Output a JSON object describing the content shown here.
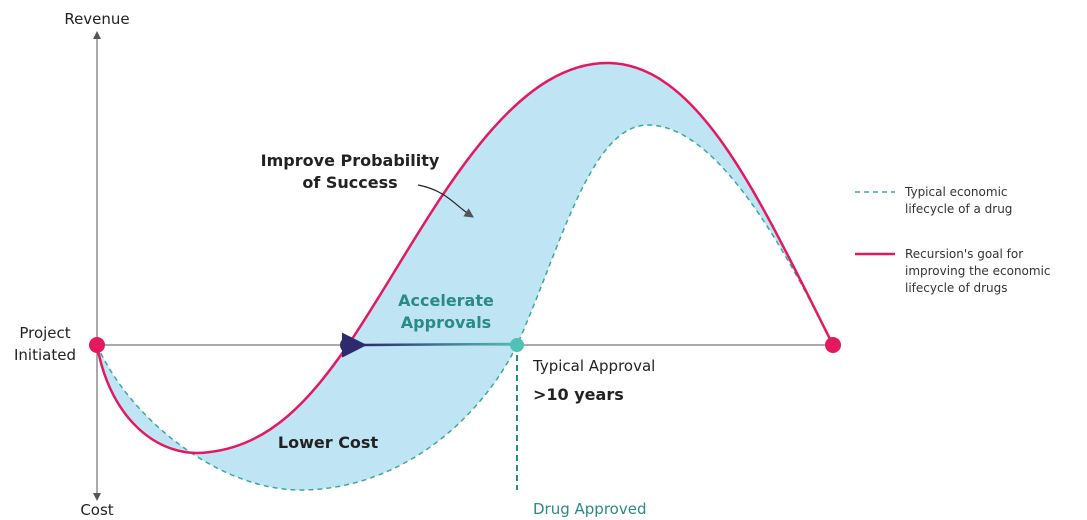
{
  "axes": {
    "y_top": "Revenue",
    "y_bottom": "Cost",
    "origin": [
      "Project",
      "Initiated"
    ]
  },
  "annotations": {
    "probability": [
      "Improve Probability",
      "of Success"
    ],
    "accelerate": [
      "Accelerate",
      "Approvals"
    ],
    "lower_cost": "Lower Cost",
    "typical_approval": "Typical Approval",
    "duration": ">10 years",
    "drug_approved": "Drug Approved"
  },
  "legend": [
    {
      "lines": [
        "Typical economic",
        "lifecycle of a drug"
      ]
    },
    {
      "lines": [
        "Recursion's goal for",
        "improving the economic",
        "lifecycle of drugs"
      ]
    }
  ]
}
